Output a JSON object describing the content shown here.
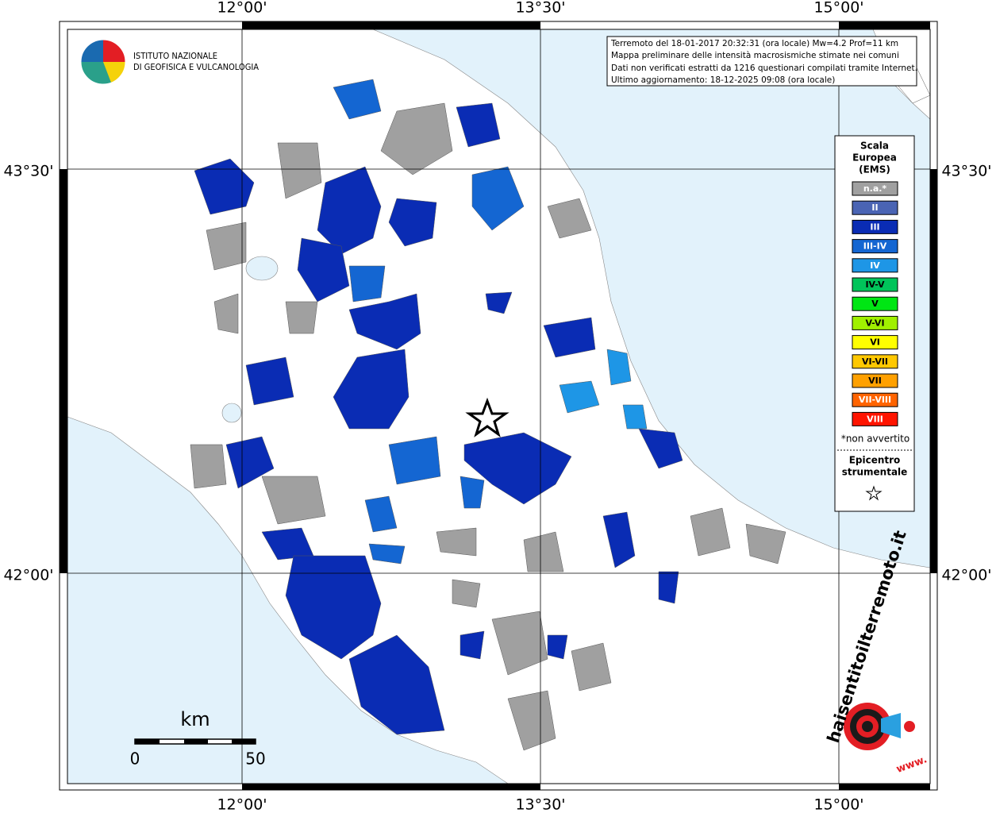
{
  "map": {
    "lon_labels": [
      "12°00'",
      "13°30'",
      "15°00'"
    ],
    "lat_labels": [
      "43°30'",
      "42°00'"
    ],
    "info": [
      "Terremoto del 18-01-2017 20:32:31 (ora locale) Mw=4.2 Prof=11 km",
      "Mappa preliminare delle intensità macrosismiche stimate nei comuni",
      "Dati non verificati estratti da 1216 questionari compilati tramite Internet.",
      "Ultimo aggiornamento: 18-12-2025 09:08 (ora locale)"
    ],
    "institute": [
      "ISTITUTO NAZIONALE",
      "DI GEOFISICA E VULCANOLOGIA"
    ],
    "legend": {
      "title": [
        "Scala",
        "Europea",
        "(EMS)"
      ],
      "items": [
        {
          "label": "n.a.*",
          "color": "#a0a0a0"
        },
        {
          "label": "II",
          "color": "#4a64b4"
        },
        {
          "label": "III",
          "color": "#0a2cb4"
        },
        {
          "label": "III-IV",
          "color": "#1466d2"
        },
        {
          "label": "IV",
          "color": "#1e96e6"
        },
        {
          "label": "IV-V",
          "color": "#00c45a"
        },
        {
          "label": "V",
          "color": "#00e614"
        },
        {
          "label": "V-VI",
          "color": "#a0f000"
        },
        {
          "label": "VI",
          "color": "#ffff00"
        },
        {
          "label": "VI-VII",
          "color": "#ffc800"
        },
        {
          "label": "VII",
          "color": "#ffa000"
        },
        {
          "label": "VII-VIII",
          "color": "#ff6400"
        },
        {
          "label": "VIII",
          "color": "#ff1400"
        }
      ],
      "footnote": "*non avvertito",
      "epicenter": [
        "Epicentro",
        "strumentale"
      ]
    },
    "scale": {
      "unit": "km",
      "ticks": [
        "0",
        "50"
      ]
    },
    "site_logo": {
      "name": "haisentitoilterremoto.it",
      "prefix": "www."
    }
  }
}
